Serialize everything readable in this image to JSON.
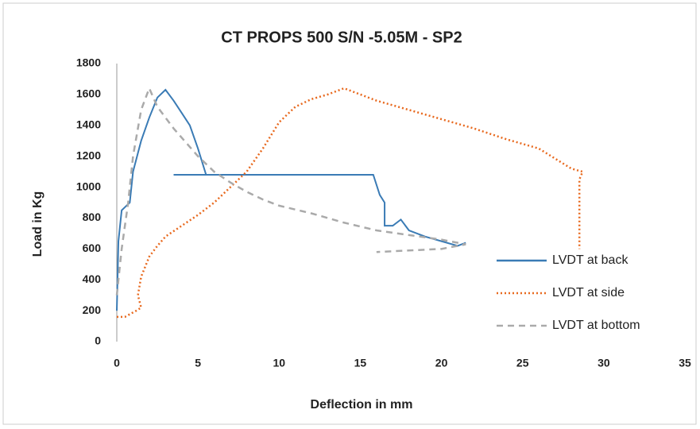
{
  "chart_data": {
    "type": "line",
    "title": "CT PROPS 500 S/N -5.05M -  SP2",
    "x_label": "Deflection in mm",
    "y_label": "Load in Kg",
    "xlim": [
      0,
      35
    ],
    "xticks": [
      0,
      5,
      10,
      15,
      20,
      25,
      30,
      35
    ],
    "ylim": [
      0,
      1800
    ],
    "yticks": [
      0,
      200,
      400,
      600,
      800,
      1000,
      1200,
      1400,
      1600,
      1800
    ],
    "grid": false,
    "legend": "right",
    "series": [
      {
        "name": "LVDT at back",
        "color": "#3a7bb5",
        "style": "solid",
        "x": [
          0,
          0.1,
          0.3,
          0.5,
          0.8,
          1,
          1.5,
          2,
          2.5,
          3,
          3.5,
          4,
          4.5,
          5,
          5.5,
          3.5,
          15.8,
          16.2,
          16.5,
          16.5,
          17,
          17.5,
          18,
          19,
          20,
          21,
          21.5
        ],
        "values": [
          200,
          650,
          850,
          870,
          900,
          1100,
          1300,
          1450,
          1580,
          1630,
          1560,
          1480,
          1400,
          1250,
          1080,
          1080,
          1080,
          950,
          900,
          750,
          750,
          790,
          720,
          680,
          650,
          620,
          640
        ]
      },
      {
        "name": "LVDT at side",
        "color": "#e8691e",
        "style": "dotted",
        "x": [
          0,
          0.5,
          1.2,
          1.5,
          1.3,
          1.5,
          2,
          2.5,
          3,
          4,
          5,
          6,
          7,
          8,
          9,
          10,
          11,
          12,
          13,
          14,
          15,
          16,
          18,
          20,
          22,
          24,
          26,
          28,
          28.7,
          28.5,
          28.5
        ],
        "values": [
          160,
          160,
          200,
          220,
          300,
          420,
          550,
          620,
          680,
          750,
          820,
          900,
          1000,
          1100,
          1250,
          1420,
          1520,
          1570,
          1600,
          1640,
          1600,
          1560,
          1500,
          1440,
          1380,
          1310,
          1250,
          1120,
          1100,
          1050,
          600
        ]
      },
      {
        "name": "LVDT at bottom",
        "color": "#aaaaaa",
        "style": "dashed",
        "x": [
          0,
          0.3,
          0.7,
          1,
          1.5,
          2,
          2.5,
          3.5,
          5,
          6,
          7,
          8,
          9,
          10,
          12,
          14,
          16,
          18,
          20,
          21.5,
          20,
          18,
          16
        ],
        "values": [
          300,
          600,
          900,
          1200,
          1500,
          1640,
          1520,
          1380,
          1200,
          1100,
          1030,
          970,
          920,
          880,
          830,
          770,
          720,
          690,
          660,
          630,
          600,
          590,
          580
        ]
      }
    ]
  }
}
